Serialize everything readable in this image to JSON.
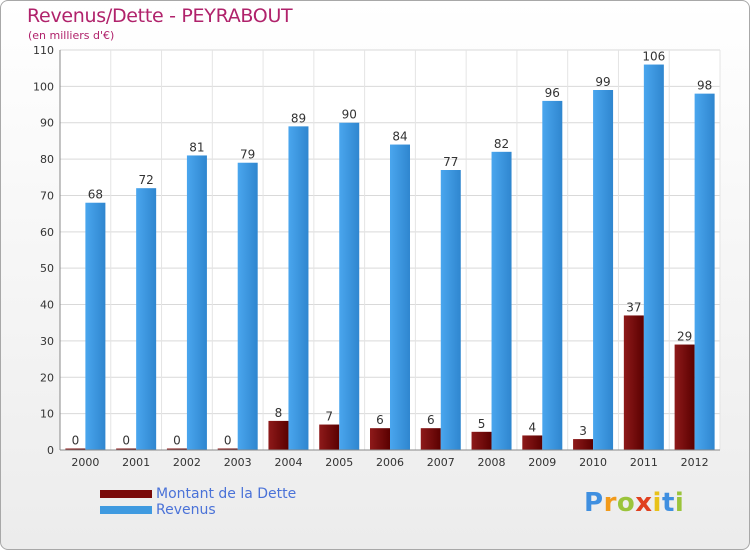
{
  "chart_data": {
    "type": "bar",
    "title": "Revenus/Dette - PEYRABOUT",
    "subtitle": "(en milliers d'€)",
    "categories": [
      "2000",
      "2001",
      "2002",
      "2003",
      "2004",
      "2005",
      "2006",
      "2007",
      "2008",
      "2009",
      "2010",
      "2011",
      "2012"
    ],
    "series": [
      {
        "name": "Montant de la Dette",
        "color": "#7a0a0a",
        "values": [
          0,
          0,
          0,
          0,
          8,
          7,
          6,
          6,
          5,
          4,
          3,
          37,
          29
        ]
      },
      {
        "name": "Revenus",
        "color": "#3f9ae0",
        "values": [
          68,
          72,
          81,
          79,
          89,
          90,
          84,
          77,
          82,
          96,
          99,
          106,
          98
        ]
      }
    ],
    "ylim": [
      0,
      110
    ],
    "yticks": [
      0,
      10,
      20,
      30,
      40,
      50,
      60,
      70,
      80,
      90,
      100,
      110
    ],
    "grid": true,
    "legend_position": "bottom-left"
  },
  "branding": {
    "logo_letters": [
      "P",
      "r",
      "o",
      "x",
      "i",
      "t",
      "i"
    ],
    "logo_colors": [
      "#3f8fe0",
      "#f29a1a",
      "#9bc43b",
      "#e0401f",
      "#e8c21a",
      "#3f8fe0",
      "#9bc43b"
    ]
  }
}
